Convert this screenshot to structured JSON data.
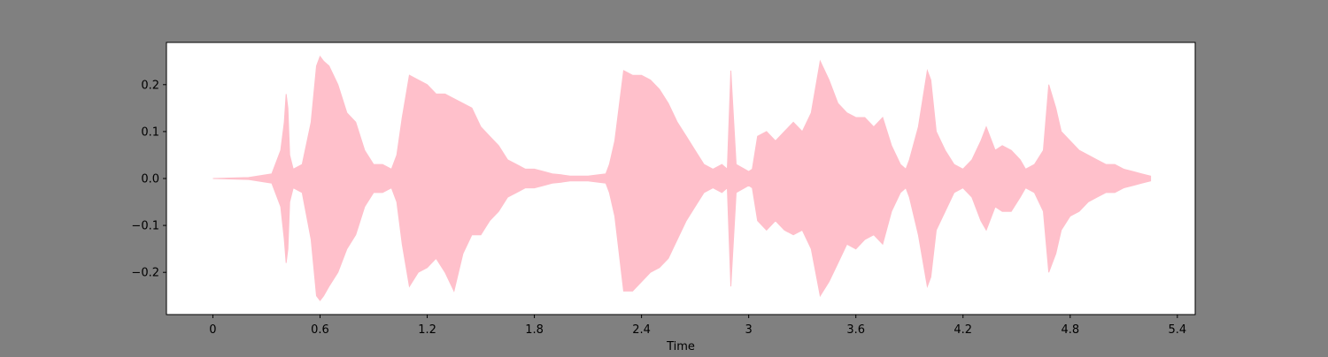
{
  "chart_data": {
    "type": "area",
    "title": "",
    "xlabel": "Time",
    "ylabel": "",
    "xlim": [
      -0.26,
      5.5
    ],
    "ylim": [
      -0.29,
      0.29
    ],
    "xticks": [
      0,
      0.6,
      1.2,
      1.8,
      2.4,
      3.0,
      3.6,
      4.2,
      4.8,
      5.4
    ],
    "xtick_labels": [
      "0",
      "0.6",
      "1.2",
      "1.8",
      "2.4",
      "3",
      "3.6",
      "4.2",
      "4.8",
      "5.4"
    ],
    "yticks": [
      -0.2,
      -0.1,
      0.0,
      0.1,
      0.2
    ],
    "ytick_labels": [
      "−0.2",
      "−0.1",
      "0.0",
      "0.1",
      "0.2"
    ],
    "grid": false,
    "colors": {
      "waveform": "#ffc0cb",
      "figure_background": "#808080",
      "plot_background": "#ffffff",
      "axes": "#000000"
    },
    "series": [
      {
        "x": [
          0.0,
          0.2,
          0.33,
          0.38,
          0.4,
          0.41,
          0.42,
          0.43,
          0.45,
          0.5,
          0.55,
          0.58,
          0.6,
          0.62,
          0.65,
          0.7,
          0.75,
          0.8,
          0.85,
          0.9,
          0.95,
          1.0,
          1.03,
          1.06,
          1.1,
          1.15,
          1.2,
          1.25,
          1.3,
          1.35,
          1.4,
          1.45,
          1.5,
          1.55,
          1.6,
          1.65,
          1.7,
          1.75,
          1.8,
          1.85,
          1.9,
          1.95,
          2.0,
          2.1,
          2.2,
          2.22,
          2.25,
          2.3,
          2.35,
          2.4,
          2.45,
          2.5,
          2.55,
          2.6,
          2.65,
          2.7,
          2.75,
          2.8,
          2.85,
          2.88,
          2.9,
          2.93,
          3.0,
          3.02,
          3.05,
          3.1,
          3.15,
          3.2,
          3.25,
          3.3,
          3.35,
          3.4,
          3.45,
          3.5,
          3.55,
          3.6,
          3.65,
          3.7,
          3.75,
          3.8,
          3.85,
          3.88,
          3.9,
          3.95,
          4.0,
          4.02,
          4.05,
          4.1,
          4.15,
          4.2,
          4.25,
          4.3,
          4.33,
          4.38,
          4.42,
          4.47,
          4.52,
          4.55,
          4.6,
          4.65,
          4.68,
          4.72,
          4.75,
          4.8,
          4.85,
          4.9,
          4.95,
          5.0,
          5.05,
          5.1,
          5.15,
          5.2,
          5.25
        ],
        "upper": [
          0.0,
          0.002,
          0.01,
          0.06,
          0.12,
          0.18,
          0.15,
          0.05,
          0.02,
          0.03,
          0.12,
          0.24,
          0.26,
          0.25,
          0.24,
          0.2,
          0.14,
          0.12,
          0.06,
          0.03,
          0.03,
          0.02,
          0.05,
          0.13,
          0.22,
          0.21,
          0.2,
          0.18,
          0.18,
          0.17,
          0.16,
          0.15,
          0.11,
          0.09,
          0.07,
          0.04,
          0.03,
          0.02,
          0.02,
          0.015,
          0.01,
          0.008,
          0.005,
          0.005,
          0.01,
          0.03,
          0.08,
          0.23,
          0.22,
          0.22,
          0.21,
          0.19,
          0.16,
          0.12,
          0.09,
          0.06,
          0.03,
          0.02,
          0.03,
          0.02,
          0.23,
          0.03,
          0.015,
          0.02,
          0.09,
          0.1,
          0.08,
          0.1,
          0.12,
          0.1,
          0.14,
          0.25,
          0.21,
          0.16,
          0.14,
          0.13,
          0.13,
          0.11,
          0.13,
          0.07,
          0.03,
          0.02,
          0.04,
          0.11,
          0.23,
          0.21,
          0.1,
          0.06,
          0.03,
          0.02,
          0.04,
          0.08,
          0.11,
          0.06,
          0.07,
          0.06,
          0.04,
          0.02,
          0.03,
          0.06,
          0.2,
          0.15,
          0.1,
          0.08,
          0.06,
          0.05,
          0.04,
          0.03,
          0.03,
          0.02,
          0.015,
          0.01,
          0.005
        ],
        "lower": [
          0.0,
          -0.002,
          -0.01,
          -0.06,
          -0.13,
          -0.18,
          -0.15,
          -0.05,
          -0.02,
          -0.03,
          -0.13,
          -0.25,
          -0.26,
          -0.25,
          -0.23,
          -0.2,
          -0.15,
          -0.12,
          -0.06,
          -0.03,
          -0.03,
          -0.02,
          -0.05,
          -0.14,
          -0.23,
          -0.2,
          -0.19,
          -0.17,
          -0.2,
          -0.24,
          -0.16,
          -0.12,
          -0.12,
          -0.09,
          -0.07,
          -0.04,
          -0.03,
          -0.02,
          -0.02,
          -0.015,
          -0.01,
          -0.008,
          -0.005,
          -0.005,
          -0.01,
          -0.03,
          -0.08,
          -0.24,
          -0.24,
          -0.22,
          -0.2,
          -0.19,
          -0.17,
          -0.13,
          -0.09,
          -0.06,
          -0.03,
          -0.02,
          -0.03,
          -0.02,
          -0.23,
          -0.03,
          -0.015,
          -0.02,
          -0.09,
          -0.11,
          -0.09,
          -0.11,
          -0.12,
          -0.11,
          -0.15,
          -0.25,
          -0.22,
          -0.18,
          -0.14,
          -0.15,
          -0.13,
          -0.12,
          -0.14,
          -0.07,
          -0.03,
          -0.02,
          -0.04,
          -0.12,
          -0.23,
          -0.21,
          -0.11,
          -0.07,
          -0.03,
          -0.02,
          -0.04,
          -0.09,
          -0.11,
          -0.06,
          -0.07,
          -0.07,
          -0.04,
          -0.02,
          -0.03,
          -0.07,
          -0.2,
          -0.16,
          -0.11,
          -0.08,
          -0.07,
          -0.05,
          -0.04,
          -0.03,
          -0.03,
          -0.02,
          -0.015,
          -0.01,
          -0.005
        ]
      }
    ]
  }
}
